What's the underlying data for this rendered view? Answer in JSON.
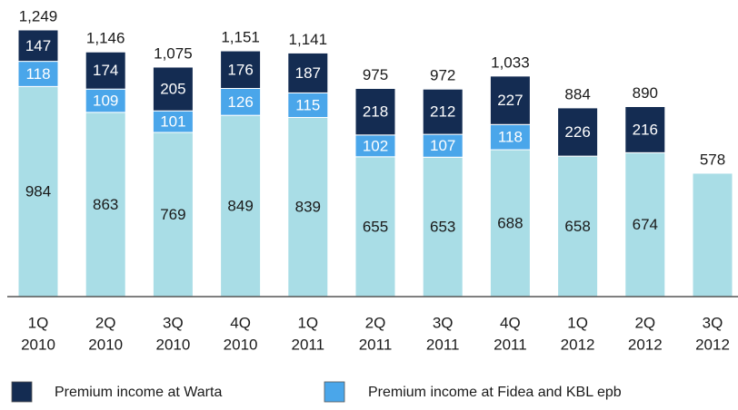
{
  "chart_data": {
    "type": "stacked-bar",
    "categories": [
      [
        "1Q",
        "2010"
      ],
      [
        "2Q",
        "2010"
      ],
      [
        "3Q",
        "2010"
      ],
      [
        "4Q",
        "2010"
      ],
      [
        "1Q",
        "2011"
      ],
      [
        "2Q",
        "2011"
      ],
      [
        "3Q",
        "2011"
      ],
      [
        "4Q",
        "2011"
      ],
      [
        "1Q",
        "2012"
      ],
      [
        "2Q",
        "2012"
      ],
      [
        "3Q",
        "2012"
      ]
    ],
    "series": [
      {
        "color": "#a9dde6",
        "label_color": "#1a1a1a",
        "values": [
          984,
          863,
          769,
          849,
          839,
          655,
          653,
          688,
          658,
          674,
          578
        ]
      },
      {
        "name": "Premium income at Fidea and KBL epb",
        "color": "#4aa6ea",
        "label_color": "#ffffff",
        "values": [
          118,
          109,
          101,
          126,
          115,
          102,
          107,
          118,
          null,
          null,
          null
        ]
      },
      {
        "name": "Premium income at Warta",
        "color": "#142c52",
        "label_color": "#ffffff",
        "values": [
          147,
          174,
          205,
          176,
          187,
          218,
          212,
          227,
          226,
          216,
          null
        ]
      }
    ],
    "totals": [
      1249,
      1146,
      1075,
      1151,
      1141,
      975,
      972,
      1033,
      884,
      890,
      578
    ],
    "total_labels": [
      "1,249",
      "1,146",
      "1,075",
      "1,151",
      "1,141",
      "975",
      "972",
      "1,033",
      "884",
      "890",
      "578"
    ],
    "legend_order": [
      2,
      1
    ]
  }
}
